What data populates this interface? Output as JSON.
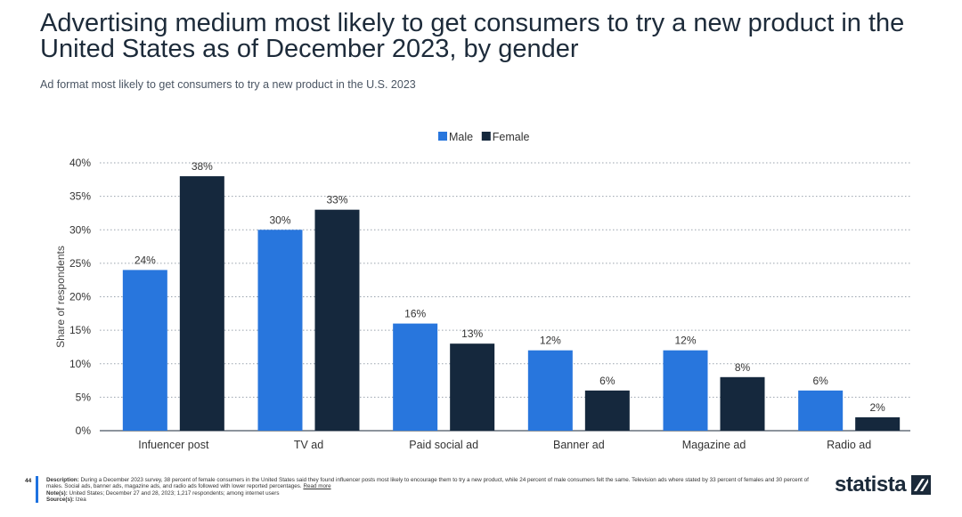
{
  "header": {
    "title": "Advertising medium most likely to get consumers to try a new product in the United States as of December 2023, by gender",
    "subtitle": "Ad format most likely to get consumers to try a new product in the U.S. 2023"
  },
  "chart_data": {
    "type": "bar",
    "categories": [
      "Infuencer post",
      "TV ad",
      "Paid social ad",
      "Banner ad",
      "Magazine ad",
      "Radio ad"
    ],
    "series": [
      {
        "name": "Male",
        "values": [
          24,
          30,
          16,
          12,
          12,
          6
        ],
        "color": "#2876dd"
      },
      {
        "name": "Female",
        "values": [
          38,
          33,
          13,
          6,
          8,
          2
        ],
        "color": "#15283d"
      }
    ],
    "title": "Advertising medium most likely to get consumers to try a new product in the United States as of December 2023, by gender",
    "xlabel": "",
    "ylabel": "Share of respondents",
    "ylim": [
      0,
      40
    ],
    "yticks": [
      0,
      5,
      10,
      15,
      20,
      25,
      30,
      35,
      40
    ],
    "value_suffix": "%",
    "grid": true,
    "legend": "top-center"
  },
  "footer": {
    "page_number": "44",
    "description_label": "Description:",
    "description_text": "During a December 2023 survey, 38 percent of female consumers in the United States said they found influencer posts most likely to encourage them to try a new product, while 24 percent of male consumers felt the same. Television ads where stated by 33 percent of females and 30 percent of males. Social ads, banner ads, magazine ads, and radio ads followed with lower reported percentages.",
    "read_more": "Read more",
    "notes_label": "Note(s):",
    "notes_text": "United States; December 27 and 28, 2023; 1,217 respondents; among internet users",
    "source_label": "Source(s):",
    "source_text": "Izea",
    "brand": "statista"
  },
  "colors": {
    "male": "#2876dd",
    "female": "#15283d",
    "accent": "#1e72e0"
  }
}
